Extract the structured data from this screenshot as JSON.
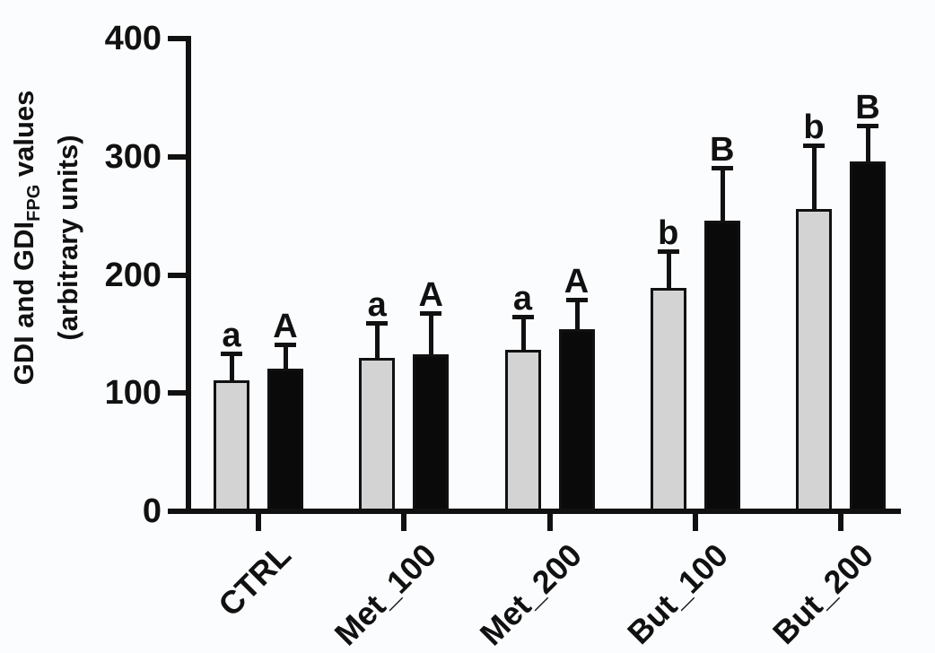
{
  "chart_data": {
    "type": "bar",
    "title": "",
    "ylabel": {
      "line1_prefix": "GDI and GDI",
      "line1_subscript": "FPG",
      "line1_suffix": " values",
      "line2": "(arbitrary units)"
    },
    "xlabel": "",
    "ylim": [
      0,
      400
    ],
    "yticks": [
      0,
      100,
      200,
      300,
      400
    ],
    "categories": [
      "CTRL",
      "Met_100",
      "Met_200",
      "But_100",
      "But_200"
    ],
    "series": [
      {
        "name": "GDI",
        "fill": "#d3d3d3",
        "values": [
          111,
          130,
          137,
          189,
          256
        ],
        "errors_sd": [
          24,
          31,
          29,
          33,
          55
        ],
        "significance_letters": [
          "a",
          "a",
          "a",
          "b",
          "b"
        ]
      },
      {
        "name": "GDI_FPG",
        "fill": "#0a0a0a",
        "values": [
          121,
          133,
          154,
          246,
          296
        ],
        "errors_sd": [
          22,
          36,
          27,
          46,
          32
        ],
        "significance_letters": [
          "A",
          "A",
          "A",
          "B",
          "B"
        ]
      }
    ],
    "error_bars": "upper SD with T-cap",
    "grid": false,
    "legend_position": "none",
    "colors": {
      "axis": "#111111",
      "bar_gray": "#d3d3d3",
      "bar_black": "#0a0a0a",
      "background": "#fbfcfd"
    }
  }
}
